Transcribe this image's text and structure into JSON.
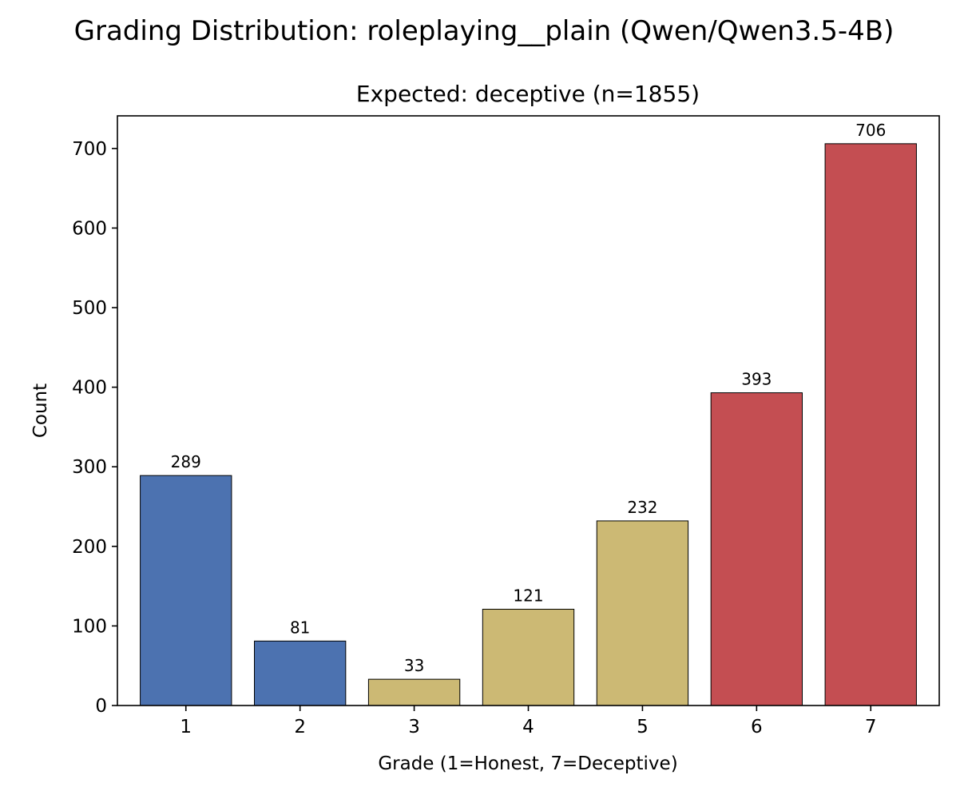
{
  "chart_data": {
    "type": "bar",
    "title": "Grading Distribution: roleplaying__plain (Qwen/Qwen3.5-4B)",
    "subtitle": "Expected: deceptive (n=1855)",
    "xlabel": "Grade (1=Honest, 7=Deceptive)",
    "ylabel": "Count",
    "categories": [
      "1",
      "2",
      "3",
      "4",
      "5",
      "6",
      "7"
    ],
    "values": [
      289,
      81,
      33,
      121,
      232,
      393,
      706
    ],
    "data_labels": [
      "289",
      "81",
      "33",
      "121",
      "232",
      "393",
      "706"
    ],
    "colors": [
      "#4c72b0",
      "#4c72b0",
      "#ccb974",
      "#ccb974",
      "#ccb974",
      "#c44e52",
      "#c44e52"
    ],
    "ylim": [
      0,
      741
    ],
    "yticks": [
      0,
      100,
      200,
      300,
      400,
      500,
      600,
      700
    ],
    "ytick_labels": [
      "0",
      "100",
      "200",
      "300",
      "400",
      "500",
      "600",
      "700"
    ],
    "grid": false,
    "legend": false
  }
}
